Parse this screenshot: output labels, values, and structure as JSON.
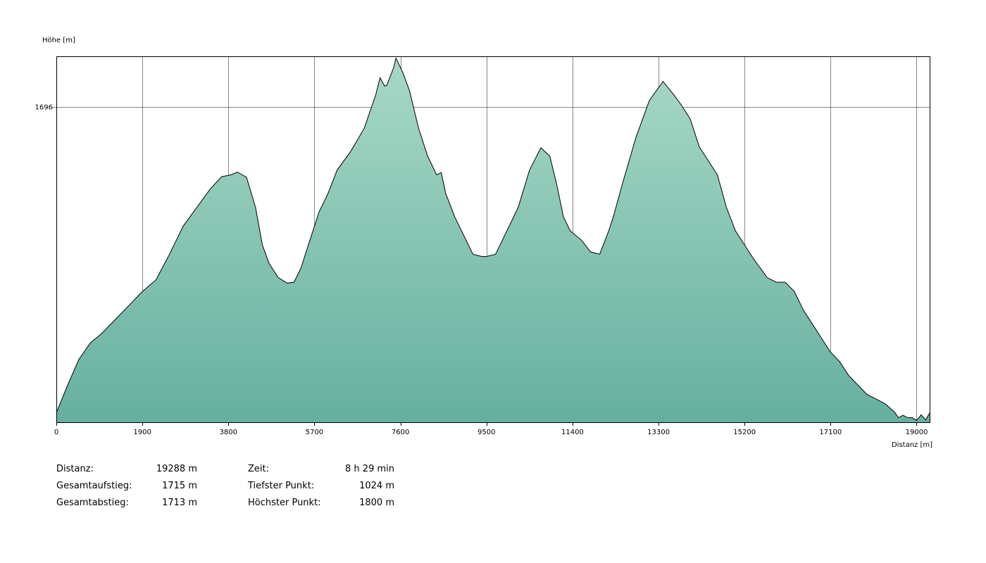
{
  "chart_data": {
    "type": "area",
    "ylabel": "Höhe [m]",
    "xlabel": "Distanz [m]",
    "xlim": [
      0,
      19288
    ],
    "ylim": [
      1020,
      1804
    ],
    "x_ticks": [
      0,
      1900,
      3800,
      5700,
      7600,
      9500,
      11400,
      13300,
      15200,
      17100,
      19000
    ],
    "y_ticks": [
      1696
    ],
    "grid": true,
    "fill_color_top": "#a8d8c6",
    "fill_color_bottom": "#66b0a0",
    "line_color": "#000000",
    "grid_color": "#555555",
    "x": [
      0,
      250,
      500,
      750,
      1000,
      1300,
      1600,
      1900,
      2200,
      2500,
      2800,
      3100,
      3400,
      3650,
      3850,
      4000,
      4200,
      4400,
      4550,
      4700,
      4900,
      5100,
      5250,
      5400,
      5600,
      5800,
      6000,
      6200,
      6500,
      6800,
      7050,
      7150,
      7250,
      7300,
      7450,
      7500,
      7650,
      7800,
      8000,
      8200,
      8400,
      8500,
      8600,
      8800,
      9000,
      9200,
      9400,
      9500,
      9700,
      9900,
      10200,
      10450,
      10700,
      10900,
      11050,
      11200,
      11350,
      11600,
      11800,
      12000,
      12200,
      12300,
      12500,
      12800,
      13100,
      13400,
      13650,
      13800,
      14000,
      14200,
      14400,
      14600,
      14800,
      15000,
      15200,
      15400,
      15700,
      15900,
      16100,
      16300,
      16500,
      16700,
      16900,
      17100,
      17300,
      17500,
      17700,
      17900,
      18100,
      18300,
      18500,
      18600,
      18700,
      18800,
      18900,
      19000,
      19100,
      19200,
      19288
    ],
    "y": [
      1040,
      1100,
      1155,
      1190,
      1210,
      1240,
      1270,
      1300,
      1325,
      1380,
      1440,
      1480,
      1520,
      1546,
      1550,
      1556,
      1545,
      1480,
      1400,
      1360,
      1330,
      1318,
      1320,
      1350,
      1410,
      1470,
      1510,
      1560,
      1600,
      1650,
      1720,
      1758,
      1740,
      1742,
      1780,
      1800,
      1770,
      1730,
      1650,
      1590,
      1550,
      1555,
      1510,
      1460,
      1420,
      1380,
      1375,
      1375,
      1380,
      1420,
      1480,
      1560,
      1608,
      1590,
      1530,
      1460,
      1430,
      1410,
      1385,
      1380,
      1430,
      1460,
      1530,
      1630,
      1710,
      1750,
      1720,
      1700,
      1670,
      1610,
      1580,
      1550,
      1480,
      1430,
      1400,
      1370,
      1330,
      1320,
      1320,
      1300,
      1260,
      1230,
      1200,
      1170,
      1150,
      1120,
      1100,
      1080,
      1070,
      1060,
      1043,
      1030,
      1035,
      1030,
      1030,
      1024,
      1036,
      1025,
      1040
    ]
  },
  "stats": {
    "left": [
      {
        "label": "Distanz:",
        "value": "19288 m"
      },
      {
        "label": "Gesamtaufstieg:",
        "value": "1715 m"
      },
      {
        "label": "Gesamtabstieg:",
        "value": "1713 m"
      }
    ],
    "right": [
      {
        "label": "Zeit:",
        "value": "8 h 29 min"
      },
      {
        "label": "Tiefster Punkt:",
        "value": "1024 m"
      },
      {
        "label": "Höchster Punkt:",
        "value": "1800 m"
      }
    ]
  }
}
